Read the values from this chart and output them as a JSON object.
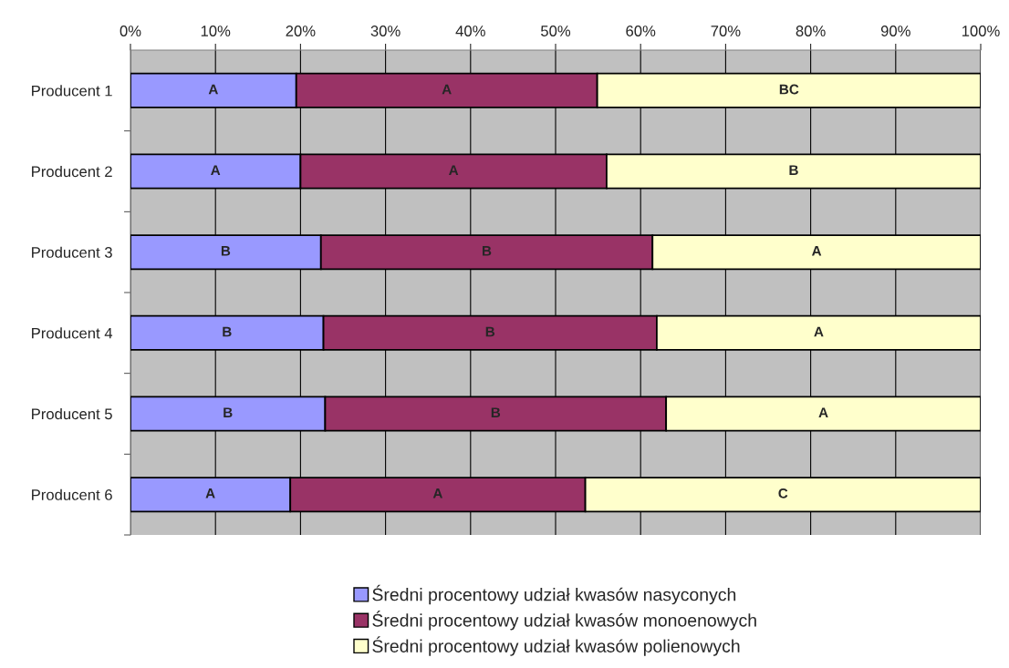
{
  "chart_data": {
    "type": "bar",
    "orientation": "horizontal",
    "stacked": true,
    "categories": [
      "Producent 1",
      "Producent 2",
      "Producent 3",
      "Producent 4",
      "Producent 5",
      "Producent 6"
    ],
    "series": [
      {
        "name": "Średni procentowy udział kwasów nasyconych",
        "color": "#9999ff",
        "values": [
          19.5,
          20.0,
          22.4,
          22.7,
          22.9,
          18.8
        ],
        "value_labels": [
          "A",
          "A",
          "B",
          "B",
          "B",
          "A"
        ]
      },
      {
        "name": "Średni procentowy udział kwasów monoenowych",
        "color": "#993366",
        "values": [
          35.4,
          36.0,
          39.0,
          39.2,
          40.1,
          34.7
        ],
        "value_labels": [
          "A",
          "A",
          "B",
          "B",
          "B",
          "A"
        ]
      },
      {
        "name": "Średni procentowy udział kwasów polienowych",
        "color": "#ffffcc",
        "values": [
          45.1,
          44.0,
          38.6,
          38.1,
          37.0,
          46.5
        ],
        "value_labels": [
          "BC",
          "B",
          "A",
          "A",
          "A",
          "C"
        ]
      }
    ],
    "xlim": [
      0,
      100
    ],
    "xticks": [
      {
        "value": 0,
        "label": "0%"
      },
      {
        "value": 10,
        "label": "10%"
      },
      {
        "value": 20,
        "label": "20%"
      },
      {
        "value": 30,
        "label": "30%"
      },
      {
        "value": 40,
        "label": "40%"
      },
      {
        "value": 50,
        "label": "50%"
      },
      {
        "value": 60,
        "label": "60%"
      },
      {
        "value": 70,
        "label": "70%"
      },
      {
        "value": 80,
        "label": "80%"
      },
      {
        "value": 90,
        "label": "90%"
      },
      {
        "value": 100,
        "label": "100%"
      }
    ],
    "grid": "x",
    "legend": "bottom"
  }
}
